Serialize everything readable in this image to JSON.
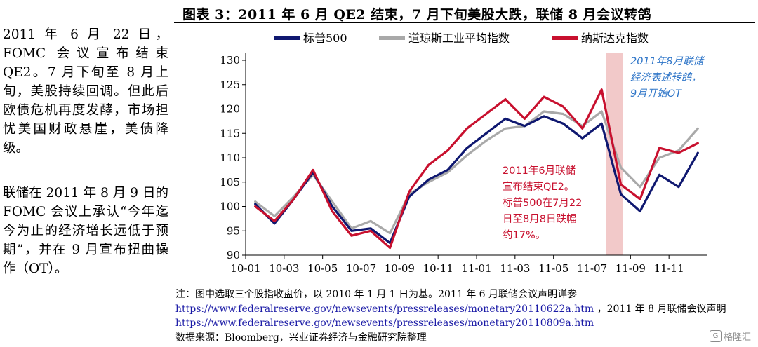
{
  "figure_title": "图表 3：2011 年 6 月 QE2 结束，7 月下旬美股大跌，联储 8 月会议转鸽",
  "side_text": [
    "2011 年 6 月 22 日，FOMC 会议宣布结束 QE2。7 月下旬至 8 月上旬，美股持续回调。但此后欧债危机再度发酵，市场担忧美国财政悬崖，美债降级。",
    "联储在 2011 年 8 月 9 日的 FOMC 会议上承认“今年迄今为止的经济增长远低于预期”，并在 9 月宣布扭曲操作（OT）。"
  ],
  "notes": {
    "line1": "注：图中选取三个股指收盘价，以 2010 年 1 月 1 日为基。2011 年 6 月联储会议声明详参",
    "link1": "https://www.federalreserve.gov/newsevents/pressreleases/monetary20110622a.htm",
    "line2_suffix": " ，2011 年 8 月联储会议声明",
    "link2": "https://www.federalreserve.gov/newsevents/pressreleases/monetary20110809a.htm",
    "source": "数据来源：Bloomberg，兴业证券经济与金融研究院整理"
  },
  "watermark": {
    "icon": "G",
    "text": "格隆汇"
  },
  "colors": {
    "sp500": "#0f1870",
    "dow": "#a9a9a9",
    "nasdaq": "#c8102e",
    "shade": "#f2c9c9",
    "annotation_blue": "#2e75c8",
    "annotation_red": "#c8102e"
  },
  "chart_data": {
    "type": "line",
    "title": "",
    "xlabel": "",
    "ylabel": "",
    "ylim": [
      90,
      130
    ],
    "yticks": [
      "90",
      "95",
      "100",
      "105",
      "110",
      "115",
      "120",
      "125",
      "130"
    ],
    "xticks": [
      "10-01",
      "10-03",
      "10-05",
      "10-07",
      "10-09",
      "10-11",
      "11-01",
      "11-03",
      "11-05",
      "11-07",
      "11-09",
      "11-11"
    ],
    "legend_position": "top",
    "x": [
      "2010-01",
      "2010-02",
      "2010-03",
      "2010-04",
      "2010-05",
      "2010-06",
      "2010-07",
      "2010-08",
      "2010-09",
      "2010-10",
      "2010-11",
      "2010-12",
      "2011-01",
      "2011-02",
      "2011-03",
      "2011-04",
      "2011-05",
      "2011-06",
      "2011-07",
      "2011-08",
      "2011-09",
      "2011-10",
      "2011-11",
      "2011-12"
    ],
    "series": [
      {
        "name": "标普500",
        "key": "sp500",
        "values": [
          100.5,
          96.5,
          101.5,
          107,
          100,
          95,
          95.5,
          92.5,
          102,
          105.5,
          107.5,
          112,
          115,
          118,
          116.5,
          118.5,
          117,
          114,
          117,
          102.5,
          99,
          106.5,
          104,
          111
        ]
      },
      {
        "name": "道琼斯工业平均指数",
        "key": "dow",
        "values": [
          101,
          98,
          102,
          106.5,
          101,
          95.5,
          97,
          94.5,
          102.5,
          105,
          107,
          110.5,
          113.5,
          116,
          116.5,
          119.5,
          119,
          116.5,
          119.5,
          108,
          104,
          110,
          111.5,
          116
        ]
      },
      {
        "name": "纳斯达克指数",
        "key": "nasdaq",
        "values": [
          100,
          97,
          101.5,
          107.5,
          99,
          94,
          95,
          91.5,
          103,
          108.5,
          111.5,
          116,
          119,
          122,
          118,
          122.5,
          120.5,
          116,
          124,
          104.5,
          101.5,
          112,
          111,
          113
        ]
      }
    ],
    "shaded_region": {
      "start": "2011-07",
      "end": "2011-08"
    },
    "annotations": [
      {
        "text_lines": [
          "2011年8月联储",
          "经济表述转鸽，",
          "9月开始OT"
        ],
        "color": "#2e75c8"
      },
      {
        "text_lines": [
          "2011年6月联储",
          "宣布结束QE2。",
          "标普500在7月22",
          "日至8月8日跌幅",
          "约17%。"
        ],
        "color": "#c8102e"
      }
    ]
  }
}
